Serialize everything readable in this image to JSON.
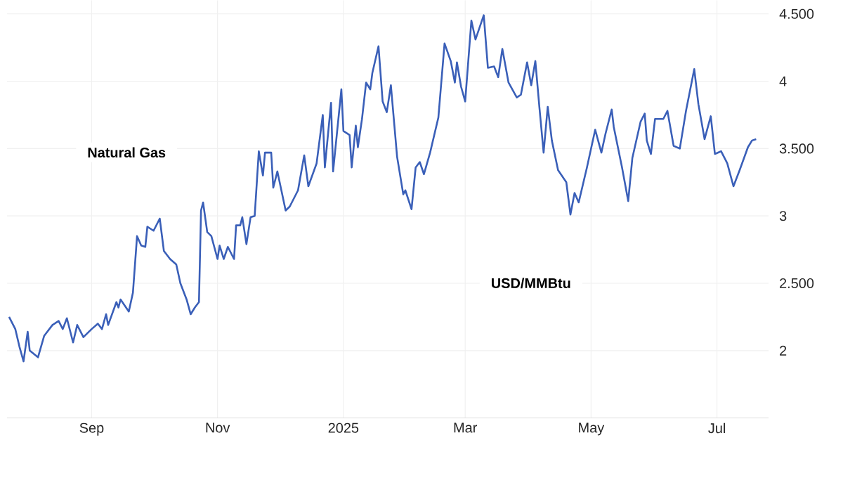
{
  "chart_data": {
    "type": "line",
    "annotations": [
      "Natural Gas",
      "USD/MMBtu"
    ],
    "x": [
      "2024-07-23",
      "2024-07-26",
      "2024-07-28",
      "2024-07-30",
      "2024-08-01",
      "2024-08-02",
      "2024-08-06",
      "2024-08-09",
      "2024-08-13",
      "2024-08-16",
      "2024-08-18",
      "2024-08-20",
      "2024-08-23",
      "2024-08-25",
      "2024-08-28",
      "2024-09-01",
      "2024-09-04",
      "2024-09-06",
      "2024-09-08",
      "2024-09-09",
      "2024-09-13",
      "2024-09-14",
      "2024-09-15",
      "2024-09-19",
      "2024-09-21",
      "2024-09-23",
      "2024-09-25",
      "2024-09-27",
      "2024-09-28",
      "2024-10-01",
      "2024-10-04",
      "2024-10-06",
      "2024-10-09",
      "2024-10-12",
      "2024-10-14",
      "2024-10-17",
      "2024-10-19",
      "2024-10-21",
      "2024-10-23",
      "2024-10-24",
      "2024-10-25",
      "2024-10-27",
      "2024-10-29",
      "2024-11-01",
      "2024-11-02",
      "2024-11-04",
      "2024-11-06",
      "2024-11-09",
      "2024-11-10",
      "2024-11-12",
      "2024-11-13",
      "2024-11-15",
      "2024-11-17",
      "2024-11-19",
      "2024-11-21",
      "2024-11-23",
      "2024-11-24",
      "2024-11-27",
      "2024-11-28",
      "2024-11-30",
      "2024-12-04",
      "2024-12-06",
      "2024-12-10",
      "2024-12-13",
      "2024-12-15",
      "2024-12-19",
      "2024-12-22",
      "2024-12-23",
      "2024-12-26",
      "2024-12-27",
      "2024-12-31",
      "2025-01-01",
      "2025-01-04",
      "2025-01-05",
      "2025-01-07",
      "2025-01-08",
      "2025-01-10",
      "2025-01-12",
      "2025-01-14",
      "2025-01-15",
      "2025-01-18",
      "2025-01-20",
      "2025-01-22",
      "2025-01-24",
      "2025-01-27",
      "2025-01-30",
      "2025-01-31",
      "2025-02-03",
      "2025-02-05",
      "2025-02-07",
      "2025-02-09",
      "2025-02-12",
      "2025-02-16",
      "2025-02-19",
      "2025-02-22",
      "2025-02-24",
      "2025-02-25",
      "2025-02-27",
      "2025-03-01",
      "2025-03-04",
      "2025-03-06",
      "2025-03-10",
      "2025-03-12",
      "2025-03-15",
      "2025-03-17",
      "2025-03-19",
      "2025-03-22",
      "2025-03-26",
      "2025-03-28",
      "2025-03-31",
      "2025-04-02",
      "2025-04-04",
      "2025-04-06",
      "2025-04-08",
      "2025-04-10",
      "2025-04-12",
      "2025-04-15",
      "2025-04-19",
      "2025-04-21",
      "2025-04-23",
      "2025-04-25",
      "2025-04-29",
      "2025-05-03",
      "2025-05-06",
      "2025-05-08",
      "2025-05-11",
      "2025-05-12",
      "2025-05-16",
      "2025-05-19",
      "2025-05-21",
      "2025-05-25",
      "2025-05-27",
      "2025-05-28",
      "2025-05-30",
      "2025-06-01",
      "2025-06-05",
      "2025-06-07",
      "2025-06-10",
      "2025-06-13",
      "2025-06-16",
      "2025-06-20",
      "2025-06-22",
      "2025-06-25",
      "2025-06-28",
      "2025-06-30",
      "2025-07-03",
      "2025-07-06",
      "2025-07-09",
      "2025-07-12",
      "2025-07-16",
      "2025-07-18",
      "2025-07-20"
    ],
    "values": [
      2.25,
      2.16,
      2.03,
      1.92,
      2.14,
      2.0,
      1.95,
      2.11,
      2.19,
      2.22,
      2.16,
      2.24,
      2.06,
      2.19,
      2.1,
      2.16,
      2.2,
      2.16,
      2.27,
      2.19,
      2.36,
      2.32,
      2.38,
      2.29,
      2.43,
      2.85,
      2.78,
      2.77,
      2.92,
      2.89,
      2.98,
      2.74,
      2.68,
      2.64,
      2.5,
      2.38,
      2.27,
      2.32,
      2.36,
      3.04,
      3.1,
      2.88,
      2.85,
      2.68,
      2.78,
      2.68,
      2.77,
      2.68,
      2.93,
      2.93,
      2.99,
      2.79,
      2.99,
      3.0,
      3.48,
      3.3,
      3.47,
      3.47,
      3.21,
      3.33,
      3.04,
      3.07,
      3.19,
      3.45,
      3.22,
      3.39,
      3.75,
      3.36,
      3.84,
      3.33,
      3.94,
      3.63,
      3.6,
      3.36,
      3.67,
      3.51,
      3.72,
      3.99,
      3.94,
      4.06,
      4.26,
      3.85,
      3.77,
      3.97,
      3.44,
      3.16,
      3.19,
      3.05,
      3.36,
      3.4,
      3.31,
      3.47,
      3.73,
      4.28,
      4.15,
      3.99,
      4.14,
      3.96,
      3.85,
      4.45,
      4.31,
      4.49,
      4.1,
      4.11,
      4.03,
      4.24,
      3.99,
      3.88,
      3.9,
      4.14,
      3.97,
      4.15,
      3.8,
      3.47,
      3.81,
      3.56,
      3.34,
      3.25,
      3.01,
      3.17,
      3.1,
      3.36,
      3.64,
      3.47,
      3.61,
      3.79,
      3.66,
      3.36,
      3.11,
      3.43,
      3.7,
      3.76,
      3.56,
      3.46,
      3.72,
      3.72,
      3.78,
      3.52,
      3.5,
      3.78,
      4.09,
      3.83,
      3.57,
      3.74,
      3.46,
      3.48,
      3.39,
      3.22,
      3.34,
      3.51,
      3.56,
      3.57
    ],
    "color": "#3a5fb8",
    "xlim": [
      "2024-07-22",
      "2025-07-26"
    ],
    "xticks": [
      {
        "value": "2024-09-01",
        "label": "Sep"
      },
      {
        "value": "2024-11-01",
        "label": "Nov"
      },
      {
        "value": "2025-01-01",
        "label": "2025"
      },
      {
        "value": "2025-03-01",
        "label": "Mar"
      },
      {
        "value": "2025-05-01",
        "label": "May"
      },
      {
        "value": "2025-07-01",
        "label": "Jul"
      }
    ],
    "ylim": [
      1.5,
      4.6
    ],
    "yticks": [
      2,
      {
        "value": 2.5,
        "label": "2.500"
      },
      3,
      {
        "value": 3.5,
        "label": "3.500"
      },
      4,
      {
        "value": 4.5,
        "label": "4.500"
      }
    ],
    "grid": true,
    "marker": "none",
    "line_style": "solid"
  }
}
